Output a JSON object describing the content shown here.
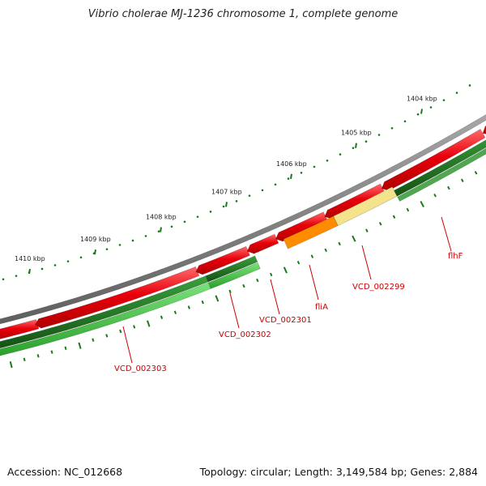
{
  "title": "Vibrio cholerae MJ-1236 chromosome 1, complete genome",
  "footer": {
    "accession": "Accession: NC_012668",
    "topology": "Topology: circular; Length: 3,149,584 bp; Genes: 2,884"
  },
  "colors": {
    "backbone": "#7f7f7f",
    "cds_forward": "#e8000b",
    "gene_dark_green": "#1f7a1f",
    "gene_light_green": "#3dc23d",
    "gene_orange": "#ff8c00",
    "gene_pale_yellow": "#f2e38c",
    "tick_green": "#1a7a1a",
    "label_red": "#cc0000"
  },
  "scale": {
    "unit": "kbp",
    "labels": [
      "1404 kbp",
      "1405 kbp",
      "1406 kbp",
      "1407 kbp",
      "1408 kbp",
      "1409 kbp",
      "1410 kbp"
    ]
  },
  "gene_labels": [
    "flhF",
    "VCD_002299",
    "fliA",
    "VCD_002301",
    "VCD_002302",
    "VCD_002303"
  ]
}
